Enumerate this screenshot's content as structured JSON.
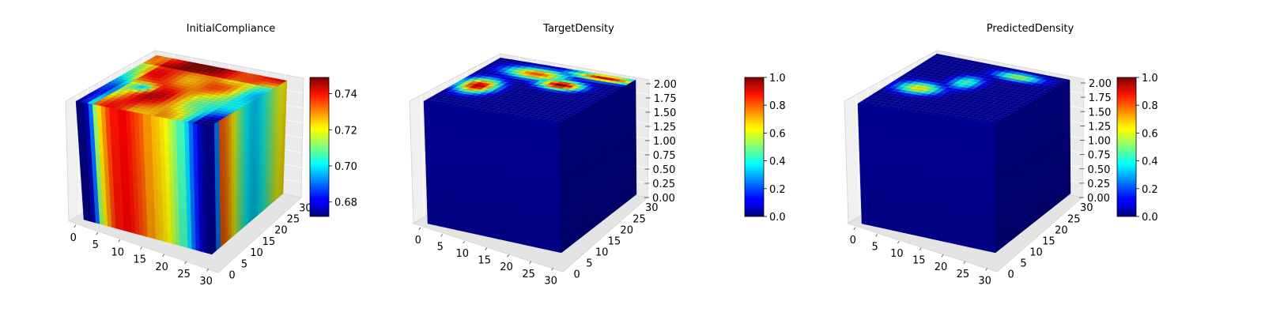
{
  "chart_data": [
    {
      "type": "3d-voxel",
      "title": "InitialCompliance",
      "colormap": "jet",
      "x_ticks": [
        "0",
        "5",
        "10",
        "15",
        "20",
        "25",
        "30"
      ],
      "y_ticks": [
        "0",
        "5",
        "10",
        "15",
        "20",
        "25",
        "30"
      ],
      "xlim": [
        0,
        32
      ],
      "ylim": [
        0,
        32
      ],
      "colorbar": {
        "range": [
          0.672,
          0.749
        ],
        "ticks": [
          {
            "value": 0.68,
            "label": "0.68"
          },
          {
            "value": 0.7,
            "label": "0.70"
          },
          {
            "value": 0.72,
            "label": "0.72"
          },
          {
            "value": 0.74,
            "label": "0.74"
          }
        ]
      },
      "front_face_profile": [
        0.672,
        0.676,
        0.69,
        0.712,
        0.722,
        0.728,
        0.734,
        0.738,
        0.74,
        0.74,
        0.738,
        0.736,
        0.734,
        0.732,
        0.728,
        0.725,
        0.724,
        0.722,
        0.72,
        0.716,
        0.712,
        0.706,
        0.698,
        0.69,
        0.684,
        0.678,
        0.674,
        0.672
      ],
      "top_face_note_values": {
        "min": 0.695,
        "max": 0.749
      }
    },
    {
      "type": "3d-voxel",
      "title": "TargetDensity",
      "colormap": "jet",
      "x_ticks": [
        "0",
        "5",
        "10",
        "15",
        "20",
        "25",
        "30"
      ],
      "y_ticks": [
        "0",
        "5",
        "10",
        "15",
        "20",
        "25",
        "30"
      ],
      "z_ticks": [
        "0.00",
        "0.25",
        "0.50",
        "0.75",
        "1.00",
        "1.25",
        "1.50",
        "1.75",
        "2.00"
      ],
      "xlim": [
        0,
        32
      ],
      "ylim": [
        0,
        32
      ],
      "zlim": [
        0,
        2
      ],
      "colorbar": {
        "range": [
          0,
          1
        ],
        "ticks": [
          {
            "value": 0.0,
            "label": "0.0"
          },
          {
            "value": 0.2,
            "label": "0.2"
          },
          {
            "value": 0.4,
            "label": "0.4"
          },
          {
            "value": 0.6,
            "label": "0.6"
          },
          {
            "value": 0.8,
            "label": "0.8"
          },
          {
            "value": 1.0,
            "label": "1.0"
          }
        ]
      },
      "top_face_hotspots": [
        {
          "x": 5,
          "y": 14,
          "sx": 3.0,
          "sy": 3.5,
          "value": 0.95
        },
        {
          "x": 12,
          "y": 26,
          "sx": 5.0,
          "sy": 2.5,
          "value": 0.8
        },
        {
          "x": 20,
          "y": 22,
          "sx": 3.5,
          "sy": 2.2,
          "value": 1.0
        },
        {
          "x": 26,
          "y": 30,
          "sx": 6.0,
          "sy": 1.6,
          "value": 0.9
        }
      ]
    },
    {
      "type": "3d-voxel",
      "title": "PredictedDensity",
      "colormap": "jet",
      "x_ticks": [
        "0",
        "5",
        "10",
        "15",
        "20",
        "25",
        "30"
      ],
      "y_ticks": [
        "0",
        "5",
        "10",
        "15",
        "20",
        "25",
        "30"
      ],
      "z_ticks": [
        "0.00",
        "0.25",
        "0.50",
        "0.75",
        "1.00",
        "1.25",
        "1.50",
        "1.75",
        "2.00"
      ],
      "xlim": [
        0,
        32
      ],
      "ylim": [
        0,
        32
      ],
      "zlim": [
        0,
        2
      ],
      "colorbar": {
        "range": [
          0,
          1
        ],
        "ticks": [
          {
            "value": 0.0,
            "label": "0.0"
          },
          {
            "value": 0.2,
            "label": "0.2"
          },
          {
            "value": 0.4,
            "label": "0.4"
          },
          {
            "value": 0.6,
            "label": "0.6"
          },
          {
            "value": 0.8,
            "label": "0.8"
          },
          {
            "value": 1.0,
            "label": "1.0"
          }
        ]
      },
      "top_face_hotspots": [
        {
          "x": 7,
          "y": 13,
          "sx": 3.5,
          "sy": 2.5,
          "value": 0.65
        },
        {
          "x": 14,
          "y": 20,
          "sx": 2.5,
          "sy": 3.0,
          "value": 0.45
        },
        {
          "x": 22,
          "y": 28,
          "sx": 4.0,
          "sy": 1.8,
          "value": 0.55
        }
      ]
    }
  ]
}
